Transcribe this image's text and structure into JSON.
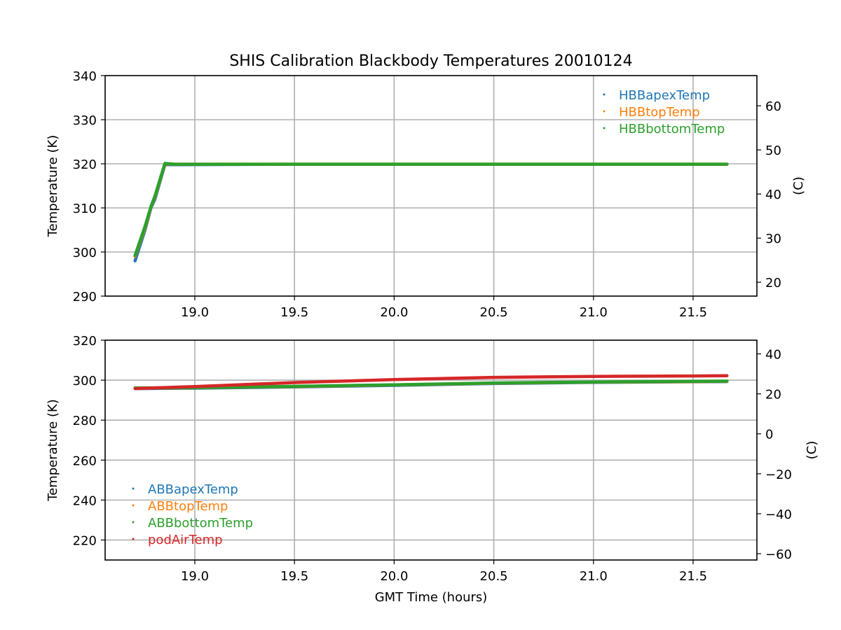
{
  "chart_data": [
    {
      "type": "scatter",
      "title": "SHIS Calibration Blackbody Temperatures 20010124",
      "xlabel": "",
      "ylabel": "Temperature (K)",
      "ylabel_right": "(C)",
      "xlim": [
        18.55,
        21.82
      ],
      "ylim": [
        290,
        340
      ],
      "ylim_right": [
        16.85,
        66.85
      ],
      "xticks": [
        "19.0",
        "19.5",
        "20.0",
        "20.5",
        "21.0",
        "21.5"
      ],
      "xtick_values": [
        19.0,
        19.5,
        20.0,
        20.5,
        21.0,
        21.5
      ],
      "yticks": [
        "290",
        "300",
        "310",
        "320",
        "330",
        "340"
      ],
      "ytick_values": [
        290,
        300,
        310,
        320,
        330,
        340
      ],
      "yticks_right": [
        "20",
        "30",
        "40",
        "50",
        "60"
      ],
      "ytick_right_values": [
        20,
        30,
        40,
        50,
        60
      ],
      "grid": true,
      "legend_position": "top-right",
      "series": [
        {
          "name": "HBBapexTemp",
          "color": "#1f77b4",
          "x": [
            18.7,
            18.75,
            18.78,
            18.8,
            18.85,
            18.9,
            19.5,
            20.0,
            20.5,
            21.0,
            21.5,
            21.67
          ],
          "y": [
            298.0,
            305.0,
            310.0,
            312.0,
            319.8,
            319.8,
            319.9,
            319.9,
            319.9,
            319.9,
            319.9,
            319.9
          ]
        },
        {
          "name": "HBBtopTemp",
          "color": "#ff7f0e",
          "x": [
            18.7,
            18.75,
            18.78,
            18.8,
            18.85,
            18.9,
            19.5,
            20.0,
            20.5,
            21.0,
            21.5,
            21.67
          ],
          "y": [
            299.0,
            305.5,
            310.2,
            312.5,
            320.0,
            319.9,
            319.9,
            319.9,
            319.9,
            319.9,
            319.9,
            319.9
          ]
        },
        {
          "name": "HBBbottomTemp",
          "color": "#2ca02c",
          "x": [
            18.7,
            18.75,
            18.78,
            18.8,
            18.85,
            18.9,
            19.5,
            20.0,
            20.5,
            21.0,
            21.5,
            21.67
          ],
          "y": [
            299.2,
            305.8,
            310.3,
            312.7,
            320.1,
            319.9,
            319.9,
            319.9,
            319.9,
            319.9,
            319.9,
            319.9
          ]
        }
      ]
    },
    {
      "type": "scatter",
      "title": "",
      "xlabel": "GMT Time (hours)",
      "ylabel": "Temperature (K)",
      "ylabel_right": "(C)",
      "xlim": [
        18.55,
        21.82
      ],
      "ylim": [
        210,
        320
      ],
      "ylim_right": [
        -63.15,
        46.85
      ],
      "xticks": [
        "19.0",
        "19.5",
        "20.0",
        "20.5",
        "21.0",
        "21.5"
      ],
      "xtick_values": [
        19.0,
        19.5,
        20.0,
        20.5,
        21.0,
        21.5
      ],
      "yticks": [
        "220",
        "240",
        "260",
        "280",
        "300",
        "320"
      ],
      "ytick_values": [
        220,
        240,
        260,
        280,
        300,
        320
      ],
      "yticks_right": [
        "−60",
        "−40",
        "−20",
        "0",
        "20",
        "40"
      ],
      "ytick_right_values": [
        -60,
        -40,
        -20,
        0,
        20,
        40
      ],
      "grid": true,
      "legend_position": "lower-left",
      "series": [
        {
          "name": "ABBapexTemp",
          "color": "#1f77b4",
          "x": [
            18.7,
            19.0,
            19.5,
            20.0,
            20.5,
            21.0,
            21.5,
            21.67
          ],
          "y": [
            295.8,
            296.0,
            296.6,
            297.4,
            298.3,
            298.9,
            299.2,
            299.3
          ]
        },
        {
          "name": "ABBtopTemp",
          "color": "#ff7f0e",
          "x": [
            18.7,
            19.0,
            19.5,
            20.0,
            20.5,
            21.0,
            21.5,
            21.67
          ],
          "y": [
            296.0,
            296.2,
            296.8,
            297.6,
            298.5,
            299.0,
            299.3,
            299.4
          ]
        },
        {
          "name": "ABBbottomTemp",
          "color": "#2ca02c",
          "x": [
            18.7,
            19.0,
            19.5,
            20.0,
            20.5,
            21.0,
            21.5,
            21.67
          ],
          "y": [
            296.1,
            296.3,
            296.9,
            297.7,
            298.6,
            299.1,
            299.4,
            299.5
          ]
        },
        {
          "name": "podAirTemp",
          "color": "#d62728",
          "x": [
            18.7,
            19.0,
            19.5,
            20.0,
            20.5,
            21.0,
            21.5,
            21.67
          ],
          "y": [
            295.8,
            296.8,
            298.8,
            300.3,
            301.4,
            301.9,
            302.1,
            302.2
          ]
        }
      ]
    }
  ]
}
